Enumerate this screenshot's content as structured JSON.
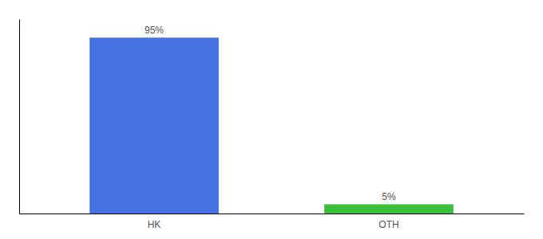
{
  "chart_data": {
    "type": "bar",
    "categories": [
      "HK",
      "OTH"
    ],
    "values": [
      95,
      5
    ],
    "colors": [
      "#4472e0",
      "#3dbf3d"
    ],
    "ylim": [
      0,
      105
    ],
    "data_labels": true,
    "value_labels": [
      "95%",
      "5%"
    ],
    "tick_labels": "x"
  }
}
